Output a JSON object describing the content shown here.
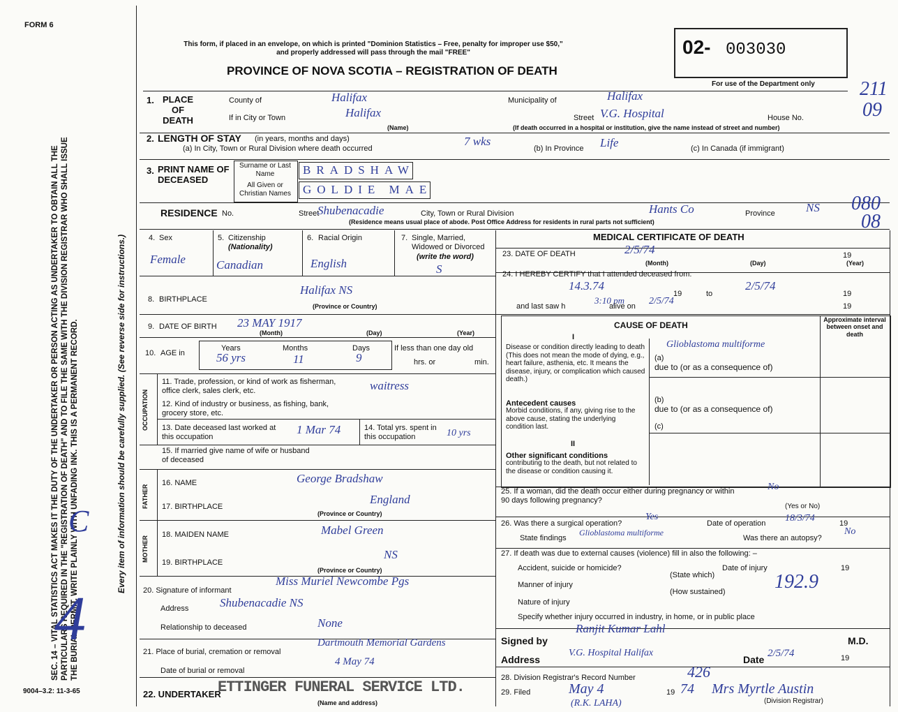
{
  "header": {
    "form": "FORM 6",
    "notice": "This form, if placed in an envelope, on which is printed \"Dominion Statistics – Free, penalty for improper use $50,\" and properly addressed will pass through the mail \"FREE\"",
    "title": "PROVINCE OF NOVA SCOTIA – REGISTRATION OF DEATH",
    "number_prefix": "02-",
    "number": "003030",
    "dept_note": "For use of the Department only",
    "dept_codes": [
      "211",
      "09",
      "080",
      "08"
    ]
  },
  "side": {
    "instructions": "SEC. 14 – VITAL STATISTICS ACT MAKES IT THE DUTY OF THE UNDERTAKER OR PERSON ACTING AS UNDERTAKER TO OBTAIN ALL THE PARTICULARS REQUIRED IN THE \"REGISTRATION OF DEATH\" AND TO FILE THE SAME WITH THE DIVISION REGISTRAR WHO SHALL ISSUE THE BURIAL PERMIT. WRITE PLAINLY WITH UNFADING INK. THIS IS A PERMANENT RECORD.",
    "note": "Every item of information should be carefully supplied. (See reverse side for instructions.)",
    "form_code": "9004–3.2: 11-3-65",
    "margin_marks": [
      "C",
      "4"
    ]
  },
  "place": {
    "num": "1.",
    "label": "PLACE OF DEATH",
    "county_label": "County of",
    "county": "Halifax",
    "municipality_label": "Municipality of",
    "municipality": "Halifax",
    "city_label": "If in City or Town",
    "city": "Halifax",
    "name_note": "(Name)",
    "street_label": "Street",
    "street": "V.G. Hospital",
    "house_label": "House No.",
    "street_note": "(If death occurred in a hospital or institution, give the name instead of street and number)"
  },
  "stay": {
    "num": "2.",
    "label": "LENGTH OF STAY",
    "label_note": "(in years, months and days)",
    "a_label": "(a) In City, Town or Rural Division where death occurred",
    "a": "7 wks",
    "b_label": "(b) In Province",
    "b": "Life",
    "c_label": "(c) In Canada (if immigrant)"
  },
  "name": {
    "num": "3.",
    "label": "PRINT NAME OF DECEASED",
    "surname_label": "Surname or Last Name",
    "surname": "BRADSHAW",
    "given_label": "All Given or Christian Names",
    "given": "GOLDIE MAE"
  },
  "residence": {
    "label": "RESIDENCE",
    "no_label": "No.",
    "street_label": "Street",
    "street": "Shubenacadie",
    "city_label": "City, Town or Rural Division",
    "city": "Hants Co",
    "province_label": "Province",
    "province": "NS",
    "note": "(Residence means usual place of abode. Post Office Address for residents in rural parts not sufficient)"
  },
  "personal": {
    "sex": {
      "num": "4.",
      "label": "Sex",
      "value": "Female"
    },
    "citizenship": {
      "num": "5.",
      "label": "Citizenship",
      "sub": "(Nationality)",
      "value": "Canadian"
    },
    "racial": {
      "num": "6.",
      "label": "Racial Origin",
      "value": "English"
    },
    "marital": {
      "num": "7.",
      "label": "Single, Married, Widowed or Divorced",
      "sub": "(write the word)",
      "value": "S"
    }
  },
  "birthplace": {
    "num": "8.",
    "label": "BIRTHPLACE",
    "value": "Halifax NS",
    "note": "(Province or Country)"
  },
  "dob": {
    "num": "9.",
    "label": "DATE OF BIRTH",
    "value": "23 MAY 1917",
    "month": "(Month)",
    "day": "(Day)",
    "year": "(Year)"
  },
  "age": {
    "num": "10.",
    "label": "AGE in",
    "years_label": "Years",
    "months_label": "Months",
    "days_label": "Days",
    "less_label": "If less than one day old",
    "hrs": "hrs. or",
    "min": "min.",
    "years": "56 yrs",
    "months": "11",
    "days": "9"
  },
  "occupation": {
    "side": "OCCUPATION",
    "trade_label": "11. Trade, profession, or kind of work as fisherman, office clerk, sales clerk, etc.",
    "trade": "waitress",
    "industry_label": "12. Kind of industry or business, as fishing, bank, grocery store, etc.",
    "last_worked_label": "13. Date deceased last worked at this occupation",
    "last_worked": "1 Mar 74",
    "total_label": "14. Total yrs. spent in this occupation",
    "total": "10 yrs"
  },
  "spouse": {
    "label": "15. If married give name of wife or husband of deceased"
  },
  "father": {
    "side": "FATHER",
    "name_label": "16. NAME",
    "name": "George Bradshaw",
    "birthplace_label": "17. BIRTHPLACE",
    "birthplace": "England",
    "note": "(Province or Country)"
  },
  "mother": {
    "side": "MOTHER",
    "maiden_label": "18. MAIDEN NAME",
    "maiden": "Mabel Green",
    "birthplace_label": "19. BIRTHPLACE",
    "birthplace": "NS",
    "note": "(Province or Country)"
  },
  "informant": {
    "label": "20. Signature of informant",
    "signature": "Miss Muriel Newcombe Pgs",
    "address_label": "Address",
    "address": "Shubenacadie NS",
    "relationship_label": "Relationship to deceased",
    "relationship": "None"
  },
  "burial": {
    "place_label": "21. Place of burial, cremation or removal",
    "place": "Dartmouth Memorial Gardens",
    "date_label": "Date of burial or removal",
    "date": "4 May 74"
  },
  "undertaker": {
    "label": "22. UNDERTAKER",
    "value": "ETTINGER FUNERAL SERVICE LTD.",
    "note": "(Name and address)"
  },
  "medical": {
    "title": "MEDICAL CERTIFICATE OF DEATH",
    "q23": "23. DATE OF DEATH",
    "date": "2/5/74",
    "nineteen": "19",
    "month": "(Month)",
    "day": "(Day)",
    "year": "(Year)",
    "q24": "24. I HEREBY CERTIFY that I attended deceased from:",
    "from": "14.3.74",
    "to_label": "to",
    "to": "2/5/74",
    "last_saw": "and last saw h",
    "last_saw_time": "3:10 pm",
    "alive_on": "alive on",
    "alive_date": "2/5/74"
  },
  "cause": {
    "title": "CAUSE OF DEATH",
    "interval": "Approximate interval between onset and death",
    "part1": "I",
    "direct_label": "Disease or condition directly leading to death (This does not mean the mode of dying, e.g., heart failure, asthenia, etc. It means the disease, injury, or complication which caused death.)",
    "a_label": "(a)",
    "a": "Glioblastoma multiforme",
    "consequence": "due to (or as a consequence of)",
    "antecedent_title": "Antecedent causes",
    "antecedent_label": "Morbid conditions, if any, giving rise to the above cause, stating the underlying condition last.",
    "b_label": "(b)",
    "c_label": "(c)",
    "part2": "II",
    "other_title": "Other significant conditions",
    "other_label": "contributing to the death, but not related to the disease or condition causing it."
  },
  "q25": {
    "label": "25. If a woman, did the death occur either during pregnancy or within 90 days following pregnancy?",
    "value": "No",
    "note": "(Yes or No)"
  },
  "q26": {
    "label": "26. Was there a surgical operation?",
    "value": "Yes",
    "date_label": "Date of operation",
    "date": "18/3/74",
    "findings_label": "State findings",
    "findings": "Glioblastoma multiforme",
    "autopsy_label": "Was there an autopsy?",
    "autopsy": "No"
  },
  "q27": {
    "label": "27. If death was due to external causes (violence) fill in also the following: –",
    "accident_label": "Accident, suicide or homicide?",
    "injury_date_label": "Date of injury",
    "state_note": "(State which)",
    "manner_label": "Manner of injury",
    "code": "192.9",
    "how_note": "(How sustained)",
    "nature_label": "Nature of injury",
    "where_label": "Specify whether injury occurred in industry, in home, or in public place"
  },
  "signature": {
    "signed_label": "Signed by",
    "signed": "Ranjit Kumar Lahl",
    "md": "M.D.",
    "address_label": "Address",
    "address": "V.G. Hospital Halifax",
    "date_label": "Date",
    "date": "2/5/74"
  },
  "registrar": {
    "q28": "28. Division Registrar's Record Number",
    "number": "426",
    "q29": "29. Filed",
    "filed": "May 4",
    "year_prefix": "19",
    "year": "74",
    "registrar": "Mrs Myrtle Austin",
    "role": "(Division Registrar)",
    "initials": "(R.K. LAHA)"
  }
}
